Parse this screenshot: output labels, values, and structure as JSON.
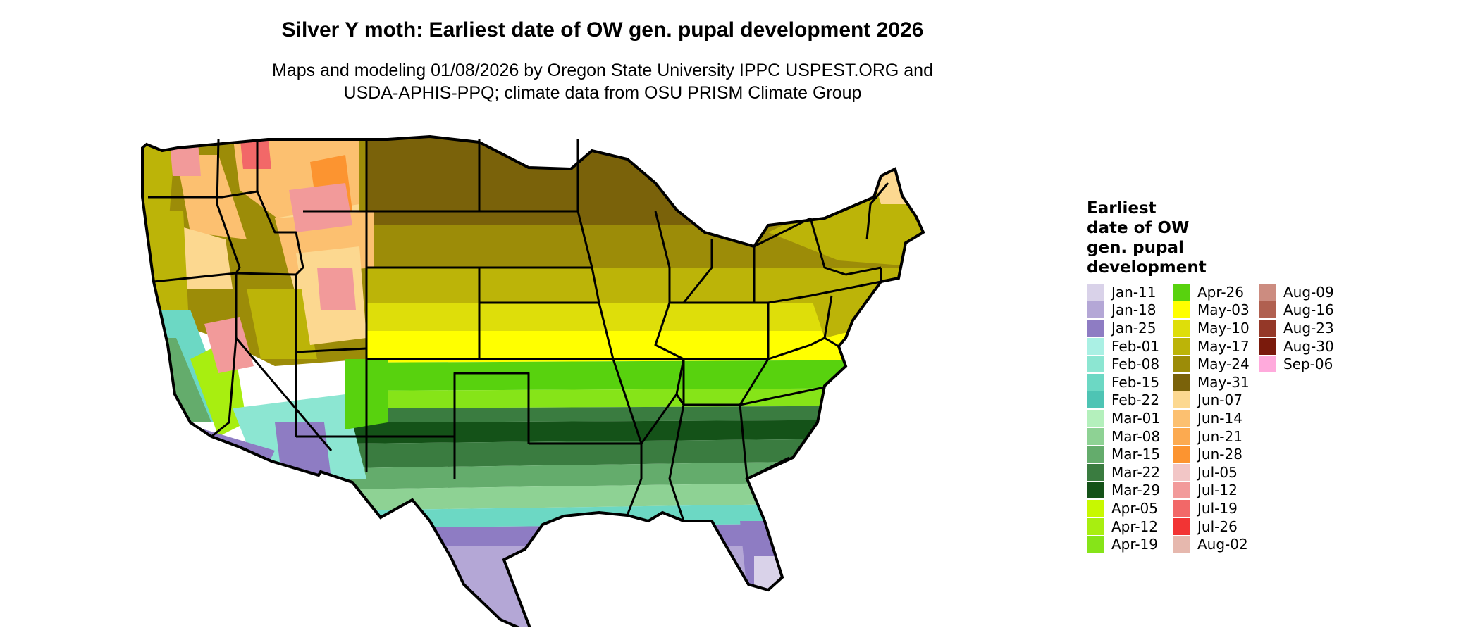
{
  "title": "Silver Y moth: Earliest date of OW gen. pupal development 2026",
  "subtitle": [
    "Maps and modeling 01/08/2026 by Oregon State University IPPC USPEST.ORG and",
    "USDA-APHIS-PPQ; climate data from OSU PRISM Climate Group"
  ],
  "legend": {
    "title": [
      "Earliest",
      "date of OW",
      "gen. pupal",
      "development"
    ],
    "items": [
      {
        "label": "Jan-11",
        "color": "#d9d2e9"
      },
      {
        "label": "Jan-18",
        "color": "#b4a7d6"
      },
      {
        "label": "Jan-25",
        "color": "#8e7cc3"
      },
      {
        "label": "Feb-01",
        "color": "#aaf0e4"
      },
      {
        "label": "Feb-08",
        "color": "#8ce6d2"
      },
      {
        "label": "Feb-15",
        "color": "#6cd8c4"
      },
      {
        "label": "Feb-22",
        "color": "#4ec4b4"
      },
      {
        "label": "Mar-01",
        "color": "#b4f0bc"
      },
      {
        "label": "Mar-08",
        "color": "#8ed294"
      },
      {
        "label": "Mar-15",
        "color": "#64ac6c"
      },
      {
        "label": "Mar-22",
        "color": "#3a7c40"
      },
      {
        "label": "Mar-29",
        "color": "#145218"
      },
      {
        "label": "Apr-05",
        "color": "#c8f800"
      },
      {
        "label": "Apr-12",
        "color": "#a8ee10"
      },
      {
        "label": "Apr-19",
        "color": "#86e418"
      },
      {
        "label": "Apr-26",
        "color": "#58d20e"
      },
      {
        "label": "May-03",
        "color": "#ffff00"
      },
      {
        "label": "May-10",
        "color": "#dede0a"
      },
      {
        "label": "May-17",
        "color": "#bcb408"
      },
      {
        "label": "May-24",
        "color": "#9c8c08"
      },
      {
        "label": "May-31",
        "color": "#7a620a"
      },
      {
        "label": "Jun-07",
        "color": "#fcd890"
      },
      {
        "label": "Jun-14",
        "color": "#fcc070"
      },
      {
        "label": "Jun-21",
        "color": "#fcaa50"
      },
      {
        "label": "Jun-28",
        "color": "#fc9430"
      },
      {
        "label": "Jul-05",
        "color": "#f2c6c6"
      },
      {
        "label": "Jul-12",
        "color": "#f29a9a"
      },
      {
        "label": "Jul-19",
        "color": "#f26868"
      },
      {
        "label": "Jul-26",
        "color": "#f23434"
      },
      {
        "label": "Aug-02",
        "color": "#e6b8ae"
      },
      {
        "label": "Aug-09",
        "color": "#cc8c80"
      },
      {
        "label": "Aug-16",
        "color": "#b06050"
      },
      {
        "label": "Aug-23",
        "color": "#943828"
      },
      {
        "label": "Aug-30",
        "color": "#7a1a0c"
      },
      {
        "label": "Sep-06",
        "color": "#ffaadc"
      }
    ]
  }
}
